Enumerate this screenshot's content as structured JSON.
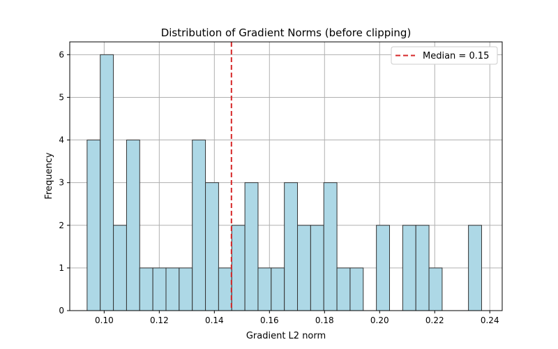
{
  "chart_data": {
    "type": "bar",
    "title": "Distribution of Gradient Norms (before clipping)",
    "xlabel": "Gradient L2 norm",
    "ylabel": "Frequency",
    "xlim": [
      0.0875,
      0.2445
    ],
    "ylim": [
      0,
      6.3
    ],
    "grid": true,
    "bin_start": 0.0938,
    "bin_width": 0.004774,
    "counts": [
      4,
      6,
      2,
      4,
      1,
      1,
      1,
      1,
      4,
      3,
      1,
      2,
      3,
      1,
      1,
      3,
      2,
      2,
      3,
      1,
      1,
      0,
      2,
      0,
      2,
      2,
      1,
      0,
      0,
      2
    ],
    "xticks": [
      "0.10",
      "0.12",
      "0.14",
      "0.16",
      "0.18",
      "0.20",
      "0.22",
      "0.24"
    ],
    "xtick_values": [
      0.1,
      0.12,
      0.14,
      0.16,
      0.18,
      0.2,
      0.22,
      0.24
    ],
    "yticks": [
      "0",
      "1",
      "2",
      "3",
      "4",
      "5",
      "6"
    ],
    "ytick_values": [
      0,
      1,
      2,
      3,
      4,
      5,
      6
    ],
    "median": 0.1462,
    "legend": {
      "placement": "top-right",
      "label": "Median = 0.15"
    },
    "colors": {
      "bar_fill": "#add8e6",
      "bar_edge": "#333333",
      "median_line": "#d62728",
      "grid": "#b0b0b0"
    }
  }
}
